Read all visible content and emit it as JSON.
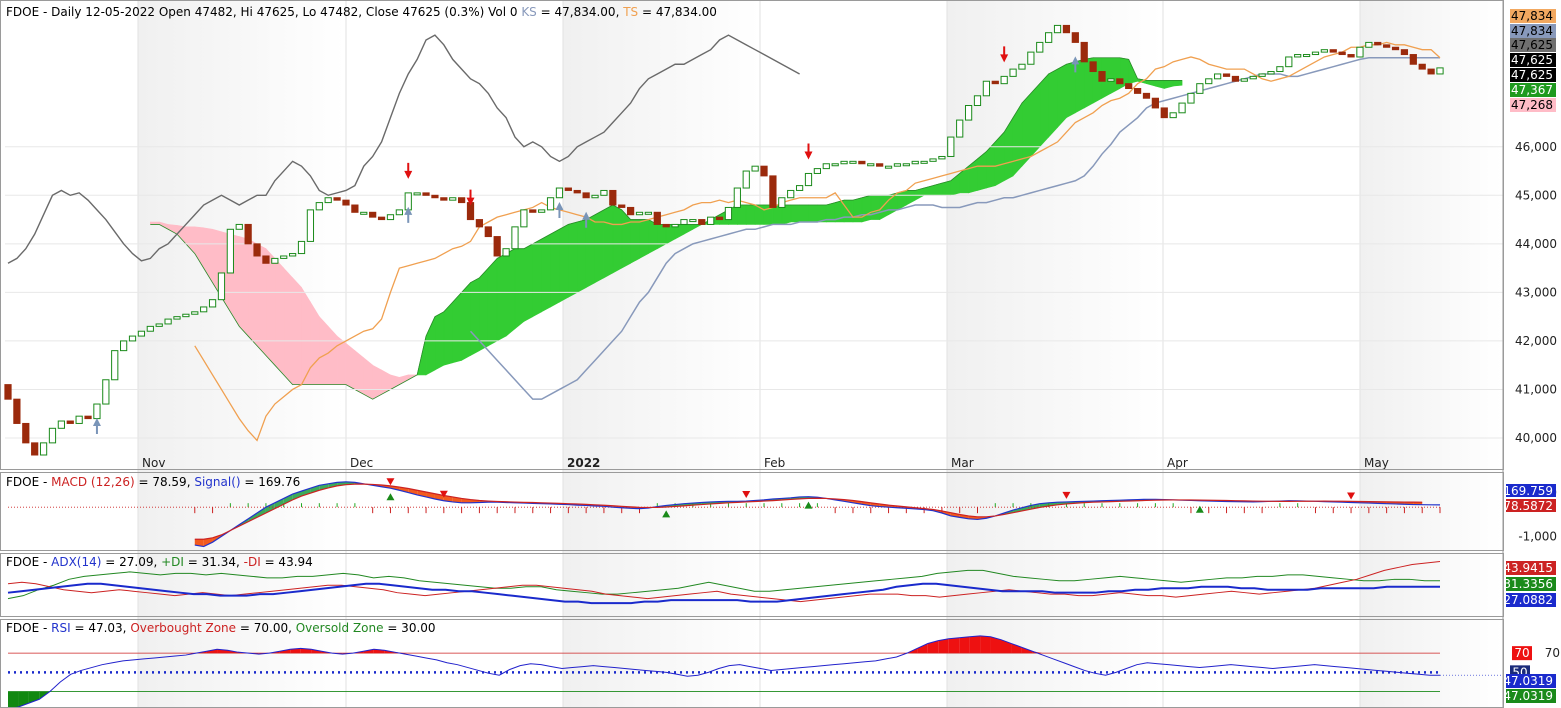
{
  "colors": {
    "up": "#1a8a1a",
    "down": "#9b2a0c",
    "kijun": "#8899bb",
    "tenkan": "#f0a050",
    "chikou": "#6a6a6a",
    "cloud_bull": "#33cc33",
    "cloud_bear": "#ffbcc7",
    "macd_line": "#2233cc",
    "macd_signal": "#cc2222",
    "adx": "#1a2acc",
    "plus_di": "#228822",
    "minus_di": "#cc2222",
    "rsi": "#2222cc"
  },
  "header": {
    "price": {
      "prefix": "FDOE - Daily 12-05-2022 Open 47482, Hi 47625, Lo 47482, Close 47625 (0.3%) Vol 0 ",
      "ks_label": "KS",
      "ks_value": " = 47,834.00, ",
      "ts_label": "TS",
      "ts_value": " = 47,834.00"
    },
    "macd": {
      "prefix": "FDOE - ",
      "macd": "MACD (12,26)",
      "macd_value": " = 78.59, ",
      "signal": "Signal()",
      "signal_value": " = 169.76"
    },
    "adx": {
      "prefix": "FDOE - ",
      "adx": "ADX(14)",
      "adx_value": " = 27.09, ",
      "pdi": "+DI",
      "pdi_value": " = 31.34, ",
      "mdi": "-DI",
      "mdi_value": " = 43.94"
    },
    "rsi": {
      "prefix": "FDOE - ",
      "rsi": "RSI",
      "rsi_value": " = 47.03, ",
      "ob": "Overbought Zone",
      "ob_value": " = 70.00, ",
      "os": "Oversold Zone",
      "os_value": " = 30.00"
    }
  },
  "chart_data": {
    "type": "candlestick",
    "x_labels": [
      "Nov",
      "Dec",
      "2022",
      "Feb",
      "Mar",
      "Apr",
      "May"
    ],
    "price_axis": {
      "ticks": [
        "46,000",
        "45,000",
        "44,000",
        "43,000",
        "42,000",
        "41,000",
        "40,000"
      ],
      "tick_values": [
        46000,
        45000,
        44000,
        43000,
        42000,
        41000,
        40000
      ],
      "ylim": [
        39650,
        48900
      ]
    },
    "price_tags": [
      {
        "text": "47,834",
        "value": 47834,
        "bg": "#f2a860",
        "fg": "#000000"
      },
      {
        "text": "47,834",
        "value": 47834,
        "bg": "#8899bb",
        "fg": "#000000"
      },
      {
        "text": "47,625",
        "value": 47625,
        "bg": "#707070",
        "fg": "#000000"
      },
      {
        "text": "47,625",
        "value": 47625,
        "bg": "#000000",
        "fg": "#ffffff"
      },
      {
        "text": "47,625",
        "value": 47625,
        "bg": "#000000",
        "fg": "#ffffff"
      },
      {
        "text": "47,367",
        "value": 47367,
        "bg": "#1e9a1e",
        "fg": "#ffffff"
      },
      {
        "text": "47,268",
        "value": 47268,
        "bg": "#ffbcc7",
        "fg": "#000000"
      }
    ],
    "close": [
      40800,
      40300,
      39900,
      39650,
      39900,
      40200,
      40350,
      40300,
      40450,
      40400,
      40700,
      41200,
      41800,
      42000,
      42100,
      42200,
      42300,
      42350,
      42450,
      42500,
      42550,
      42600,
      42700,
      42850,
      43400,
      44300,
      44400,
      44000,
      43750,
      43600,
      43700,
      43750,
      43800,
      44050,
      44700,
      44850,
      44950,
      44900,
      44800,
      44650,
      44650,
      44550,
      44500,
      44600,
      44700,
      45050,
      45050,
      45000,
      44950,
      44900,
      44950,
      44850,
      44500,
      44350,
      44150,
      43750,
      43900,
      44350,
      44700,
      44650,
      44700,
      44950,
      45150,
      45100,
      45050,
      44950,
      45000,
      45100,
      44800,
      44750,
      44600,
      44650,
      44650,
      44400,
      44350,
      44400,
      44500,
      44500,
      44400,
      44550,
      44500,
      44750,
      45150,
      45500,
      45600,
      45400,
      44750,
      44950,
      45100,
      45200,
      45450,
      45550,
      45650,
      45650,
      45700,
      45700,
      45650,
      45650,
      45600,
      45600,
      45650,
      45650,
      45700,
      45700,
      45750,
      45800,
      46200,
      46550,
      46850,
      47050,
      47350,
      47300,
      47450,
      47600,
      47700,
      47950,
      48150,
      48350,
      48500,
      48350,
      48150,
      47750,
      47550,
      47350,
      47400,
      47300,
      47200,
      47100,
      47000,
      46800,
      46600,
      46700,
      46900,
      47100,
      47300,
      47400,
      47500,
      47450,
      47350,
      47400,
      47450,
      47500,
      47550,
      47650,
      47850,
      47900,
      47900,
      47950,
      48000,
      47950,
      47900,
      47850,
      48050,
      48150,
      48100,
      48050,
      48000,
      47900,
      47700,
      47600,
      47500,
      47625
    ],
    "tenkan": [
      41900,
      41600,
      41300,
      41000,
      40700,
      40400,
      40150,
      39950,
      40450,
      40700,
      40850,
      41000,
      41100,
      41450,
      41650,
      41750,
      41900,
      42000,
      42100,
      42200,
      42250,
      42450,
      43000,
      43500,
      43550,
      43600,
      43650,
      43700,
      43800,
      43900,
      43950,
      44050,
      44350,
      44450,
      44550,
      44600,
      44650,
      44700,
      44750,
      44850,
      44750,
      44700,
      44650,
      44600,
      44550,
      44450,
      44450,
      44400,
      44400,
      44450,
      44450,
      44500,
      44550,
      44600,
      44650,
      44700,
      44800,
      44850,
      44850,
      44900,
      44850,
      44900,
      44850,
      44800,
      44700,
      44750,
      44850,
      44900,
      44950,
      44950,
      44950,
      44950,
      45050,
      44800,
      44550,
      44550,
      44650,
      44700,
      44900,
      45050,
      45100,
      45250,
      45300,
      45350,
      45400,
      45450,
      45500,
      45550,
      45600,
      45600,
      45600,
      45650,
      45700,
      45750,
      45800,
      45900,
      46000,
      46100,
      46300,
      46500,
      46600,
      46700,
      46850,
      46950,
      47000,
      47100,
      47300,
      47400,
      47600,
      47650,
      47750,
      47800,
      47850,
      47800,
      47700,
      47650,
      47600,
      47600,
      47600,
      47500,
      47400,
      47350,
      47400,
      47450,
      47550,
      47650,
      47750,
      47850,
      47900,
      47950,
      48050,
      48050,
      48100,
      48100,
      48150,
      48100,
      48100,
      48050,
      48000,
      48000,
      47834
    ],
    "kijun": [
      42200,
      42000,
      41800,
      41600,
      41400,
      41200,
      41000,
      40800,
      40800,
      40900,
      41000,
      41100,
      41200,
      41400,
      41600,
      41800,
      42000,
      42200,
      42500,
      42800,
      43000,
      43300,
      43600,
      43800,
      43900,
      44000,
      44050,
      44100,
      44150,
      44200,
      44250,
      44300,
      44300,
      44350,
      44400,
      44400,
      44400,
      44450,
      44450,
      44450,
      44500,
      44500,
      44550,
      44550,
      44600,
      44600,
      44650,
      44700,
      44700,
      44750,
      44800,
      44800,
      44800,
      44750,
      44750,
      44750,
      44800,
      44850,
      44850,
      44900,
      44950,
      44950,
      45000,
      45050,
      45100,
      45150,
      45200,
      45250,
      45300,
      45400,
      45600,
      45850,
      46050,
      46300,
      46450,
      46600,
      46800,
      46900,
      46950,
      47000,
      47050,
      47100,
      47150,
      47200,
      47250,
      47300,
      47350,
      47400,
      47450,
      47500,
      47500,
      47500,
      47450,
      47450,
      47500,
      47550,
      47600,
      47650,
      47700,
      47750,
      47800,
      47834,
      47834,
      47834,
      47834,
      47834,
      47834,
      47834,
      47834,
      47834
    ],
    "chikou": [
      43600,
      43700,
      43900,
      44200,
      44600,
      45000,
      45100,
      45000,
      45050,
      44900,
      44700,
      44500,
      44250,
      44000,
      43800,
      43650,
      43700,
      43900,
      44000,
      44200,
      44400,
      44600,
      44800,
      44900,
      45000,
      44900,
      44800,
      44900,
      45000,
      45000,
      45300,
      45500,
      45700,
      45600,
      45400,
      45100,
      45000,
      45050,
      45100,
      45200,
      45600,
      45800,
      46100,
      46600,
      47100,
      47500,
      47800,
      48200,
      48300,
      48100,
      47800,
      47600,
      47400,
      47300,
      47100,
      46800,
      46600,
      46200,
      46000,
      46100,
      46000,
      45800,
      45700,
      45800,
      46000,
      46100,
      46200,
      46300,
      46500,
      46700,
      46900,
      47200,
      47400,
      47500,
      47600,
      47700,
      47700,
      47800,
      47900,
      48000,
      48200,
      48300,
      48200,
      48100,
      48000,
      47900,
      47800,
      47700,
      47600,
      47500
    ],
    "cloud_a": [
      44400,
      44400,
      44300,
      44200,
      44000,
      43800,
      43500,
      43200,
      42900,
      42600,
      42300,
      42100,
      41900,
      41700,
      41500,
      41300,
      41100,
      41100,
      41100,
      41100,
      41100,
      41100,
      41100,
      41000,
      40900,
      40800,
      40900,
      41000,
      41100,
      41200,
      41300,
      42100,
      42500,
      42600,
      42800,
      43000,
      43200,
      43300,
      43500,
      43700,
      43800,
      43900,
      43900,
      44000,
      44100,
      44200,
      44300,
      44400,
      44450,
      44500,
      44600,
      44700,
      44800,
      44700,
      44500,
      44500,
      44500,
      44400,
      44400,
      44400,
      44400,
      44400,
      44400,
      44500,
      44600,
      44700,
      44800,
      44800,
      44800,
      44800,
      44800,
      44800,
      44800,
      44800,
      44800,
      44800,
      44800,
      44850,
      44900,
      44900,
      44950,
      45000,
      45000,
      45000,
      45050,
      45100,
      45100,
      45150,
      45200,
      45250,
      45300,
      45450,
      45600,
      45750,
      45900,
      46100,
      46300,
      46600,
      46900,
      47100,
      47300,
      47500,
      47600,
      47700,
      47750,
      47800,
      47834,
      47834,
      47834,
      47834,
      47800,
      47400,
      47367,
      47367,
      47367,
      47367,
      47367
    ],
    "cloud_b": [
      44450,
      44450,
      44400,
      44380,
      44350,
      44350,
      44330,
      44300,
      44250,
      44200,
      44150,
      44100,
      44000,
      43900,
      43700,
      43500,
      43300,
      43100,
      42800,
      42500,
      42300,
      42100,
      41950,
      41800,
      41650,
      41500,
      41400,
      41300,
      41250,
      41300,
      41300,
      41300,
      41400,
      41500,
      41550,
      41600,
      41700,
      41800,
      41900,
      42000,
      42100,
      42250,
      42400,
      42500,
      42600,
      42700,
      42800,
      42900,
      43000,
      43100,
      43200,
      43300,
      43400,
      43500,
      43600,
      43700,
      43800,
      43900,
      44000,
      44100,
      44200,
      44300,
      44400,
      44400,
      44400,
      44400,
      44400,
      44400,
      44400,
      44400,
      44400,
      44400,
      44450,
      44450,
      44450,
      44450,
      44450,
      44450,
      44450,
      44450,
      44450,
      44500,
      44500,
      44600,
      44700,
      44800,
      44900,
      45000,
      45000,
      45000,
      45000,
      45050,
      45050,
      45100,
      45150,
      45200,
      45300,
      45400,
      45600,
      45800,
      46000,
      46200,
      46400,
      46600,
      46700,
      46800,
      46900,
      47000,
      47100,
      47200,
      47300,
      47350,
      47300,
      47250,
      47200,
      47250,
      47268
    ],
    "macd": [
      -1300,
      -1350,
      -1200,
      -1000,
      -800,
      -600,
      -400,
      -200,
      0,
      150,
      300,
      450,
      550,
      650,
      750,
      800,
      850,
      870,
      850,
      800,
      750,
      700,
      650,
      580,
      500,
      420,
      350,
      280,
      220,
      180,
      150,
      150,
      160,
      170,
      170,
      160,
      150,
      140,
      130,
      120,
      110,
      100,
      90,
      70,
      60,
      40,
      30,
      0,
      -20,
      -40,
      -50,
      -30,
      20,
      60,
      90,
      120,
      140,
      160,
      180,
      190,
      200,
      200,
      210,
      230,
      250,
      280,
      300,
      320,
      350,
      360,
      340,
      300,
      250,
      200,
      150,
      100,
      50,
      20,
      0,
      -20,
      -40,
      -60,
      -80,
      -120,
      -200,
      -300,
      -350,
      -400,
      -420,
      -380,
      -300,
      -200,
      -100,
      -20,
      60,
      120,
      150,
      170,
      180,
      190,
      200,
      210,
      220,
      230,
      240,
      250,
      260,
      270,
      270,
      260,
      250,
      240,
      230,
      220,
      210,
      200,
      195,
      190,
      185,
      180,
      190,
      200,
      210,
      220,
      215,
      210,
      200,
      190,
      180,
      170,
      160,
      150,
      140,
      130,
      120,
      110,
      100,
      90,
      85,
      80,
      79
    ],
    "signal": [
      -1100,
      -1100,
      -1050,
      -950,
      -800,
      -650,
      -500,
      -350,
      -200,
      -50,
      100,
      250,
      380,
      480,
      580,
      660,
      730,
      770,
      790,
      790,
      780,
      760,
      730,
      690,
      640,
      580,
      520,
      460,
      400,
      350,
      300,
      260,
      230,
      210,
      195,
      185,
      175,
      165,
      160,
      150,
      140,
      130,
      120,
      110,
      95,
      80,
      65,
      50,
      30,
      10,
      -5,
      -10,
      -10,
      5,
      25,
      45,
      70,
      90,
      110,
      130,
      150,
      165,
      180,
      195,
      210,
      225,
      245,
      265,
      285,
      300,
      305,
      300,
      280,
      260,
      230,
      190,
      150,
      110,
      70,
      40,
      10,
      -20,
      -50,
      -80,
      -130,
      -190,
      -250,
      -300,
      -330,
      -330,
      -300,
      -250,
      -190,
      -130,
      -70,
      -10,
      40,
      80,
      110,
      135,
      155,
      170,
      180,
      190,
      200,
      210,
      220,
      230,
      240,
      245,
      248,
      248,
      246,
      242,
      238,
      233,
      228,
      222,
      215,
      210,
      205,
      200,
      198,
      198,
      200,
      202,
      205,
      206,
      205,
      202,
      198,
      194,
      190,
      186,
      182,
      178,
      175,
      172,
      170
    ],
    "adx": [
      23,
      24,
      25,
      26,
      27,
      28,
      29,
      29,
      28,
      27,
      26,
      25,
      24,
      23,
      22,
      22,
      21,
      21,
      21,
      22,
      22,
      23,
      24,
      25,
      26,
      27,
      28,
      29,
      29,
      28,
      27,
      26,
      25,
      25,
      24,
      24,
      23,
      22,
      21,
      20,
      19,
      18,
      17,
      17,
      16,
      16,
      16,
      16,
      17,
      17,
      18,
      18,
      18,
      18,
      18,
      18,
      17,
      17,
      17,
      18,
      19,
      20,
      21,
      22,
      23,
      24,
      25,
      27,
      28,
      29,
      29,
      28,
      27,
      26,
      25,
      24,
      24,
      24,
      24,
      23,
      23,
      23,
      23,
      24,
      24,
      25,
      25,
      26,
      26,
      26,
      27,
      27,
      27,
      26,
      26,
      25,
      25,
      25,
      25,
      26,
      26,
      26,
      26,
      26,
      27,
      27,
      27,
      27,
      27
    ],
    "pdi": [
      19,
      21,
      25,
      28,
      32,
      34,
      35,
      36,
      37,
      36,
      35,
      36,
      36,
      35,
      36,
      35,
      34,
      33,
      33,
      34,
      34,
      35,
      36,
      35,
      33,
      34,
      33,
      31,
      30,
      29,
      28,
      27,
      26,
      26,
      27,
      27,
      25,
      24,
      23,
      22,
      22,
      23,
      24,
      25,
      26,
      28,
      30,
      28,
      26,
      24,
      24,
      25,
      26,
      27,
      28,
      29,
      30,
      31,
      32,
      33,
      34,
      36,
      37,
      38,
      38,
      36,
      34,
      33,
      32,
      31,
      31,
      32,
      33,
      34,
      33,
      32,
      31,
      30,
      31,
      32,
      33,
      33,
      34,
      34,
      35,
      35,
      34,
      33,
      32,
      31,
      31,
      32,
      32,
      31,
      31
    ],
    "mdi": [
      29,
      30,
      29,
      27,
      25,
      24,
      23,
      24,
      25,
      24,
      23,
      22,
      21,
      22,
      23,
      22,
      21,
      22,
      23,
      24,
      25,
      26,
      27,
      28,
      28,
      27,
      26,
      25,
      23,
      22,
      21,
      22,
      23,
      24,
      25,
      26,
      27,
      28,
      28,
      27,
      26,
      25,
      24,
      22,
      21,
      20,
      19,
      20,
      21,
      22,
      23,
      24,
      22,
      21,
      20,
      19,
      18,
      17,
      18,
      19,
      20,
      21,
      22,
      22,
      22,
      21,
      21,
      20,
      21,
      22,
      23,
      24,
      25,
      24,
      23,
      22,
      22,
      21,
      21,
      22,
      23,
      22,
      21,
      21,
      20,
      21,
      22,
      23,
      24,
      23,
      22,
      23,
      24,
      25,
      26,
      28,
      30,
      32,
      35,
      38,
      40,
      42,
      43,
      44
    ],
    "rsi": [
      12,
      14,
      18,
      22,
      30,
      40,
      48,
      52,
      55,
      58,
      60,
      62,
      63,
      64,
      65,
      66,
      67,
      68,
      70,
      72,
      74,
      73,
      71,
      70,
      69,
      70,
      72,
      74,
      75,
      74,
      72,
      70,
      69,
      70,
      72,
      74,
      73,
      71,
      69,
      67,
      65,
      63,
      60,
      58,
      55,
      52,
      49,
      47,
      53,
      57,
      59,
      58,
      56,
      54,
      55,
      56,
      57,
      56,
      55,
      54,
      53,
      52,
      51,
      50,
      48,
      46,
      47,
      50,
      54,
      57,
      58,
      56,
      54,
      52,
      53,
      54,
      55,
      56,
      57,
      58,
      59,
      60,
      61,
      62,
      64,
      66,
      70,
      75,
      80,
      83,
      85,
      86,
      87,
      88,
      87,
      84,
      80,
      76,
      72,
      68,
      64,
      60,
      56,
      52,
      49,
      47,
      50,
      54,
      58,
      60,
      59,
      58,
      57,
      56,
      55,
      56,
      57,
      58,
      57,
      56,
      55,
      54,
      55,
      56,
      57,
      58,
      57,
      56,
      55,
      54,
      53,
      52,
      51,
      50,
      49,
      48,
      47,
      47.03
    ]
  }
}
